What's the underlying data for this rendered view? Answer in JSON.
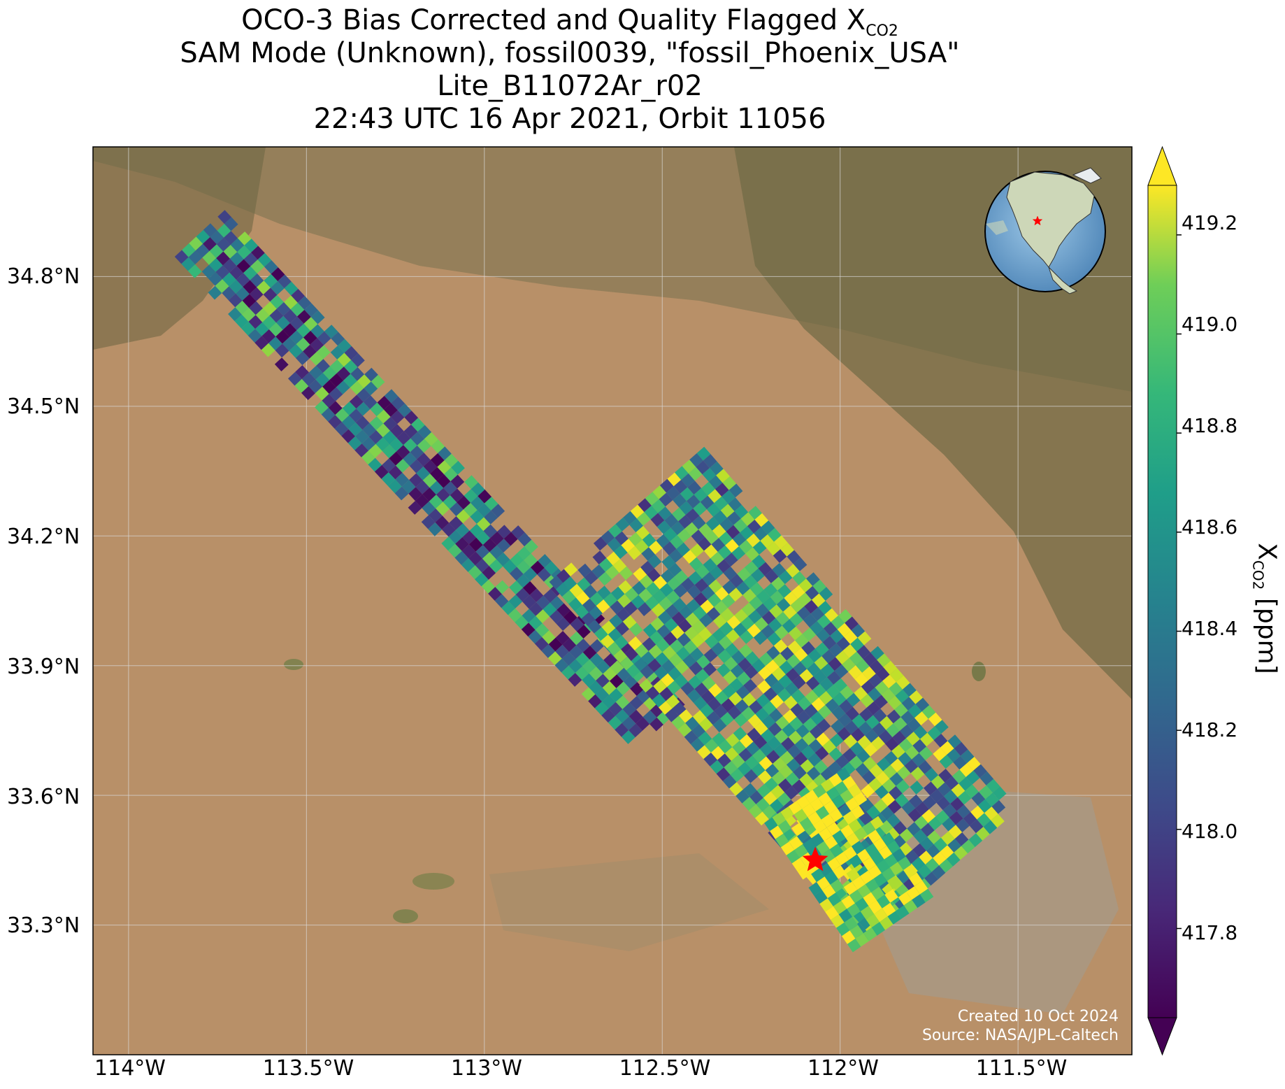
{
  "title": {
    "line1_prefix": "OCO-3 Bias Corrected and Quality Flagged X",
    "line1_sub": "CO2",
    "line2": "SAM Mode (Unknown), fossil0039, \"fossil_Phoenix_USA\"",
    "line3": "Lite_B11072Ar_r02",
    "line4": "22:43 UTC 16 Apr 2021, Orbit 11056"
  },
  "axes": {
    "lon_ticks": [
      "114°W",
      "113.5°W",
      "113°W",
      "112.5°W",
      "112°W",
      "111.5°W"
    ],
    "lat_ticks": [
      "34.8°N",
      "34.5°N",
      "34.2°N",
      "33.9°N",
      "33.6°N",
      "33.3°N"
    ],
    "lon_values": [
      -114.0,
      -113.5,
      -113.0,
      -112.5,
      -112.0,
      -111.5
    ],
    "lat_values": [
      34.8,
      34.5,
      34.2,
      33.9,
      33.6,
      33.3
    ],
    "lon_range": [
      -114.1,
      -111.18
    ],
    "lat_range": [
      33.0,
      35.1
    ]
  },
  "colorbar": {
    "label_prefix": "X",
    "label_sub": "CO2",
    "label_suffix": " [ppm]",
    "ticks": [
      "419.2",
      "419.0",
      "418.8",
      "418.6",
      "418.4",
      "418.2",
      "418.0",
      "417.8"
    ],
    "tick_values": [
      419.2,
      419.0,
      418.8,
      418.6,
      418.4,
      418.2,
      418.0,
      417.8
    ],
    "vmin": 417.62,
    "vmax": 419.3,
    "colormap": "viridis",
    "extend": "both"
  },
  "target": {
    "name": "fossil_Phoenix_USA",
    "lon": -112.07,
    "lat": 33.45,
    "marker": "red-star",
    "color": "#ff0000"
  },
  "inset_globe": {
    "marker": "red-star",
    "color": "#ff0000",
    "region": "North America"
  },
  "credits": {
    "line1": "Created 10 Oct 2024",
    "line2": "Source: NASA/JPL-Caltech"
  },
  "chart_data": {
    "type": "heatmap",
    "basemap": "satellite imagery",
    "swaths": [
      {
        "segment": "northwest",
        "start_lon": -113.8,
        "start_lat": 34.9,
        "end_lon": -112.5,
        "end_lat": 33.75,
        "typical_xco2": 418.3
      },
      {
        "segment": "southeast",
        "start_lon": -112.6,
        "start_lat": 34.25,
        "end_lon": -111.7,
        "end_lat": 33.4,
        "typical_xco2": 418.6
      },
      {
        "segment": "phoenix-plume",
        "start_lon": -112.1,
        "start_lat": 33.6,
        "end_lon": -111.85,
        "end_lat": 33.3,
        "typical_xco2": 419.2
      }
    ]
  }
}
